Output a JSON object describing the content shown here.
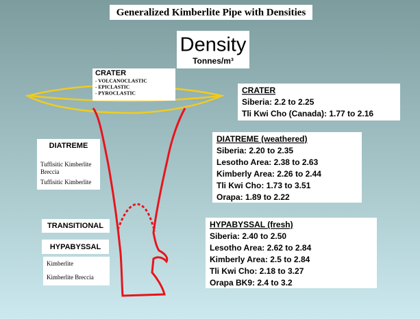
{
  "title": "Generalized Kimberlite Pipe with Densities",
  "density": {
    "heading": "Density",
    "unit": "Tonnes/m³"
  },
  "crater_label": {
    "title": "CRATER",
    "items": [
      "- VOLCANOCLASTIC",
      "- EPICLASTIC",
      "- PYROCLASTIC"
    ]
  },
  "ghost_text": "Pyroclastic",
  "density_boxes": [
    {
      "title": "CRATER",
      "lines": [
        "Siberia: 2.2 to 2.25",
        "Tli Kwi Cho (Canada): 1.77 to 2.16"
      ]
    },
    {
      "title": "DIATREME (weathered)",
      "lines": [
        "Siberia: 2.20 to 2.35",
        "Lesotho Area: 2.38 to 2.63",
        "Kimberly Area: 2.26 to 2.44",
        "Tli Kwi Cho: 1.73 to 3.51",
        "Orapa: 1.89 to 2.22"
      ]
    },
    {
      "title": "HYPABYSSAL (fresh)",
      "lines": [
        "Siberia: 2.40 to 2.50",
        "Lesotho Area: 2.62 to 2.84",
        "Kimberly Area: 2.5 to 2.84",
        "Tli Kwi Cho: 2.18 to 3.27",
        "Orapa BK9: 2.4 to 3.2"
      ]
    }
  ],
  "zones": {
    "diatreme": {
      "title": "DIATREME",
      "items": [
        "Tuffisitic Kimberlite",
        "Breccia",
        "Tuffisitic Kimberlite"
      ]
    },
    "transitional": "TRANSITIONAL",
    "hypabyssal": {
      "title": "HYPABYSSAL",
      "items": [
        "Kimberlite",
        "Kimberlite Breccia"
      ]
    }
  }
}
